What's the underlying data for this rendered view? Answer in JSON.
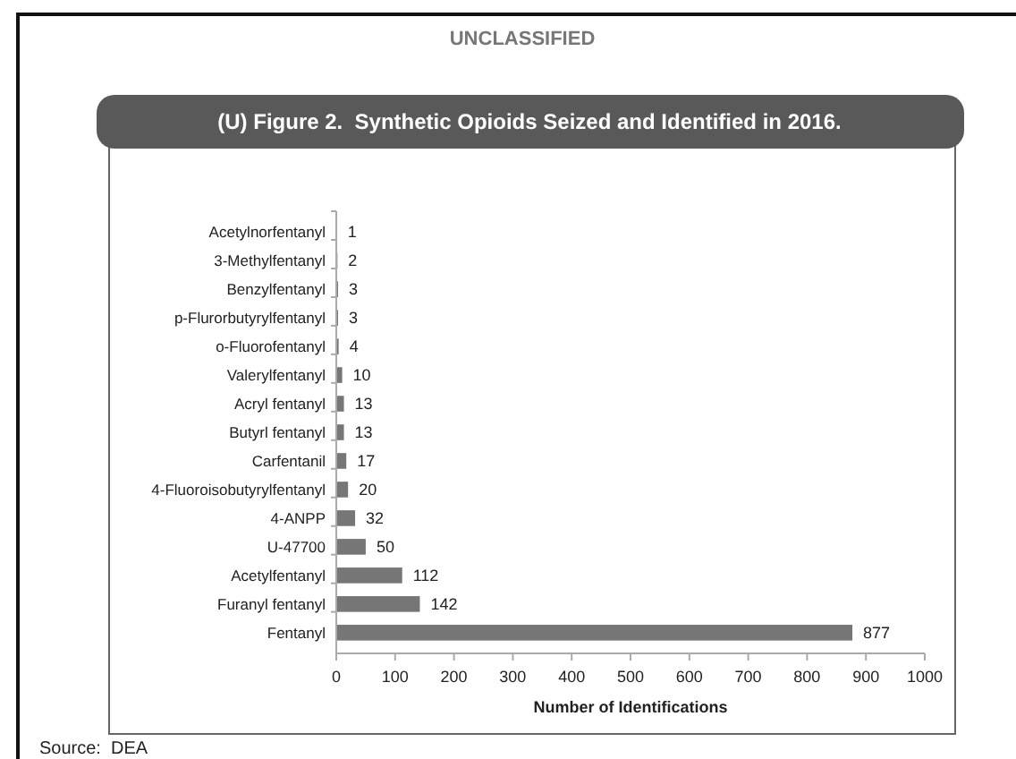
{
  "chart_data": {
    "type": "bar",
    "orientation": "horizontal",
    "title": "(U) Figure 2.  Synthetic Opioids Seized and Identified in 2016.",
    "xlabel": "Number of Identifications",
    "categories": [
      "Acetylnorfentanyl",
      "3-Methylfentanyl",
      "Benzylfentanyl",
      "p-Flurorbutyrylfentanyl",
      "o-Fluorofentanyl",
      "Valerylfentanyl",
      "Acryl fentanyl",
      "Butyrl fentanyl",
      "Carfentanil",
      "4-Fluoroisobutyrylfentanyl",
      "4-ANPP",
      "U-47700",
      "Acetylfentanyl",
      "Furanyl fentanyl",
      "Fentanyl"
    ],
    "values": [
      1,
      2,
      3,
      3,
      4,
      10,
      13,
      13,
      17,
      20,
      32,
      50,
      112,
      142,
      877
    ],
    "color": "#767676",
    "xlim": [
      0,
      1000
    ],
    "xticks": [
      0,
      100,
      200,
      300,
      400,
      500,
      600,
      700,
      800,
      900,
      1000
    ],
    "data_labels": true,
    "grid": false,
    "annotations": [
      "UNCLASSIFIED",
      "Source:  DEA"
    ]
  }
}
